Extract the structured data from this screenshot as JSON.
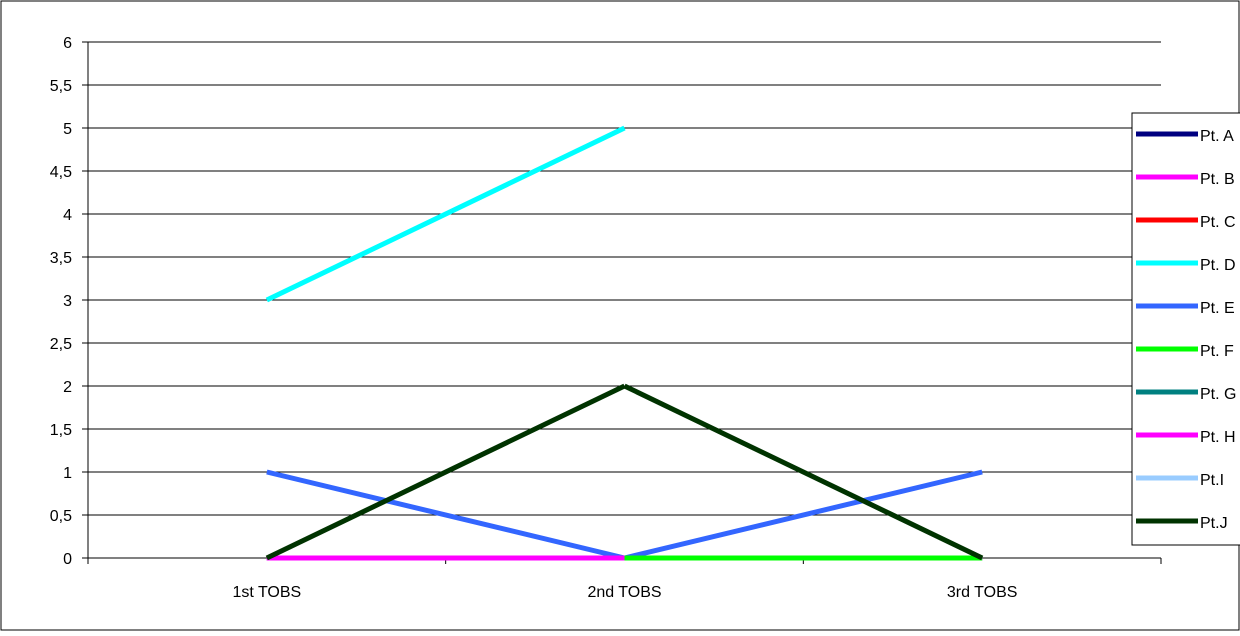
{
  "chart_data": {
    "type": "line",
    "title": "",
    "xlabel": "",
    "ylabel": "",
    "categories": [
      "1st TOBS",
      "2nd TOBS",
      "3rd TOBS"
    ],
    "ylim": [
      0,
      6
    ],
    "yticks": [
      "0",
      "0,5",
      "1",
      "1,5",
      "2",
      "2,5",
      "3",
      "3,5",
      "4",
      "4,5",
      "5",
      "5,5",
      "6"
    ],
    "grid": true,
    "legend_position": "right",
    "series": [
      {
        "name": "Pt. A",
        "color": "#000080",
        "values": [
          0,
          0,
          0
        ]
      },
      {
        "name": "Pt. B",
        "color": "#FF00FF",
        "values": [
          0,
          0,
          0
        ]
      },
      {
        "name": "Pt. C",
        "color": "#FF0000",
        "values": [
          null,
          null,
          null
        ]
      },
      {
        "name": "Pt. D",
        "color": "#00FFFF",
        "values": [
          3,
          5,
          null
        ]
      },
      {
        "name": "Pt. E",
        "color": "#3366FF",
        "values": [
          1,
          0,
          1
        ]
      },
      {
        "name": "Pt. F",
        "color": "#00FF00",
        "values": [
          null,
          0,
          0
        ]
      },
      {
        "name": "Pt. G",
        "color": "#008080",
        "values": [
          null,
          null,
          null
        ]
      },
      {
        "name": "Pt. H",
        "color": "#FF00FF",
        "values": [
          0,
          0,
          null
        ]
      },
      {
        "name": "Pt.I",
        "color": "#99CCFF",
        "values": [
          null,
          null,
          null
        ]
      },
      {
        "name": "Pt.J",
        "color": "#003300",
        "values": [
          0,
          2,
          0
        ]
      }
    ]
  }
}
